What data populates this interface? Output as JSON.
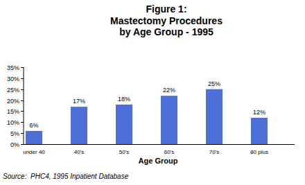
{
  "chart_data": {
    "type": "bar",
    "title": [
      "Figure 1:",
      "Mastectomy Procedures",
      "by Age Group - 1995"
    ],
    "categories": [
      "under 40",
      "40's",
      "50's",
      "60's",
      "70's",
      "80 plus"
    ],
    "values": [
      6,
      17,
      18,
      22,
      25,
      12
    ],
    "value_labels": [
      "6%",
      "17%",
      "18%",
      "22%",
      "25%",
      "12%"
    ],
    "color": "#4f6fd8",
    "ylim": [
      0,
      35
    ],
    "yticks": [
      {
        "value": 0,
        "label": "0%"
      },
      {
        "value": 5,
        "label": "5%"
      },
      {
        "value": 10,
        "label": "10%"
      },
      {
        "value": 15,
        "label": "15%"
      },
      {
        "value": 20,
        "label": "20%"
      },
      {
        "value": 25,
        "label": "25%"
      },
      {
        "value": 30,
        "label": "30%"
      },
      {
        "value": 35,
        "label": "35%"
      }
    ],
    "x_label": "Age Group",
    "annotations": [
      "Source:  PHC4, 1995 Inpatient Database"
    ],
    "grid": false,
    "data_labels": true
  }
}
